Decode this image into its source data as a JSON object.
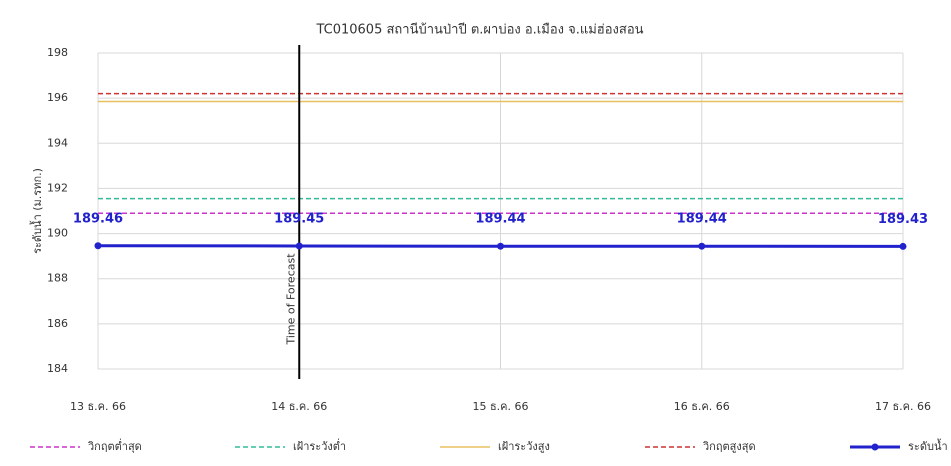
{
  "chart_data": {
    "type": "line",
    "title": "TC010605 สถานีบ้านป่าปี ต.ผาบ่อง อ.เมือง จ.แม่ฮ่องสอน",
    "y_label": "ระดับน้ำ (ม.รทก.)",
    "categories": [
      "13 ธ.ค. 66",
      "14 ธ.ค. 66",
      "15 ธ.ค. 66",
      "16 ธ.ค. 66",
      "17 ธ.ค. 66"
    ],
    "ylim": [
      184,
      198
    ],
    "yticks": [
      184,
      186,
      188,
      190,
      192,
      194,
      196,
      198
    ],
    "grid": true,
    "thresholds": [
      {
        "name": "วิกฤตต่ำสุด",
        "color": "#cc33cc",
        "value": 190.9,
        "dash": true
      },
      {
        "name": "เฝ้าระวังต่ำ",
        "color": "#33bb99",
        "value": 191.55,
        "dash": true
      },
      {
        "name": "เฝ้าระวังสูง",
        "color": "#e8c060",
        "value": 195.85,
        "dash": false
      },
      {
        "name": "วิกฤตสูงสุด",
        "color": "#cc3333",
        "value": 196.2,
        "dash": true
      }
    ],
    "series": [
      {
        "name": "ระดับน้ำ",
        "color": "#2222cc",
        "values": [
          189.46,
          189.45,
          189.44,
          189.44,
          189.43
        ]
      }
    ],
    "forecast_at": "14 ธ.ค. 66",
    "forecast_label": "Time of Forecast",
    "legend": "bottom"
  }
}
